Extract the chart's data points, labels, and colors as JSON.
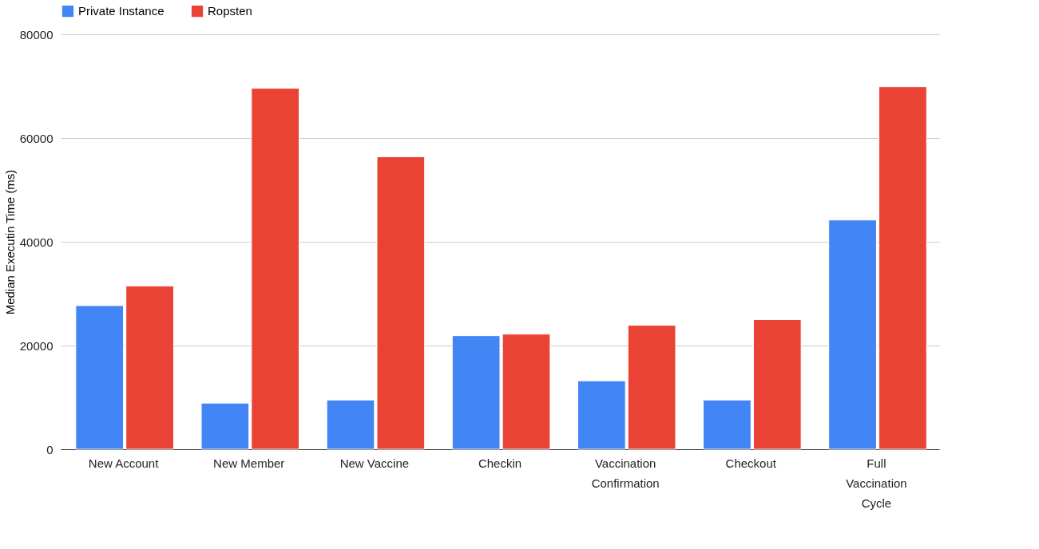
{
  "chart_data": {
    "type": "bar",
    "ylabel": "Median Executin Time (ms)",
    "categories": [
      "New Account",
      "New Member",
      "New Vaccine",
      "Checkin",
      "Vaccination Confirmation",
      "Checkout",
      "Full Vaccination Cycle"
    ],
    "series": [
      {
        "name": "Private Instance",
        "color": "#4285f4",
        "values": [
          27700,
          8900,
          9500,
          21900,
          13200,
          9500,
          44200
        ]
      },
      {
        "name": "Ropsten",
        "color": "#ea4335",
        "values": [
          31500,
          69600,
          56400,
          22200,
          23900,
          25000,
          69900
        ]
      }
    ],
    "ylim": [
      0,
      80000
    ],
    "yticks": [
      0,
      20000,
      40000,
      60000,
      80000
    ],
    "grid": "y",
    "legend": "top"
  }
}
